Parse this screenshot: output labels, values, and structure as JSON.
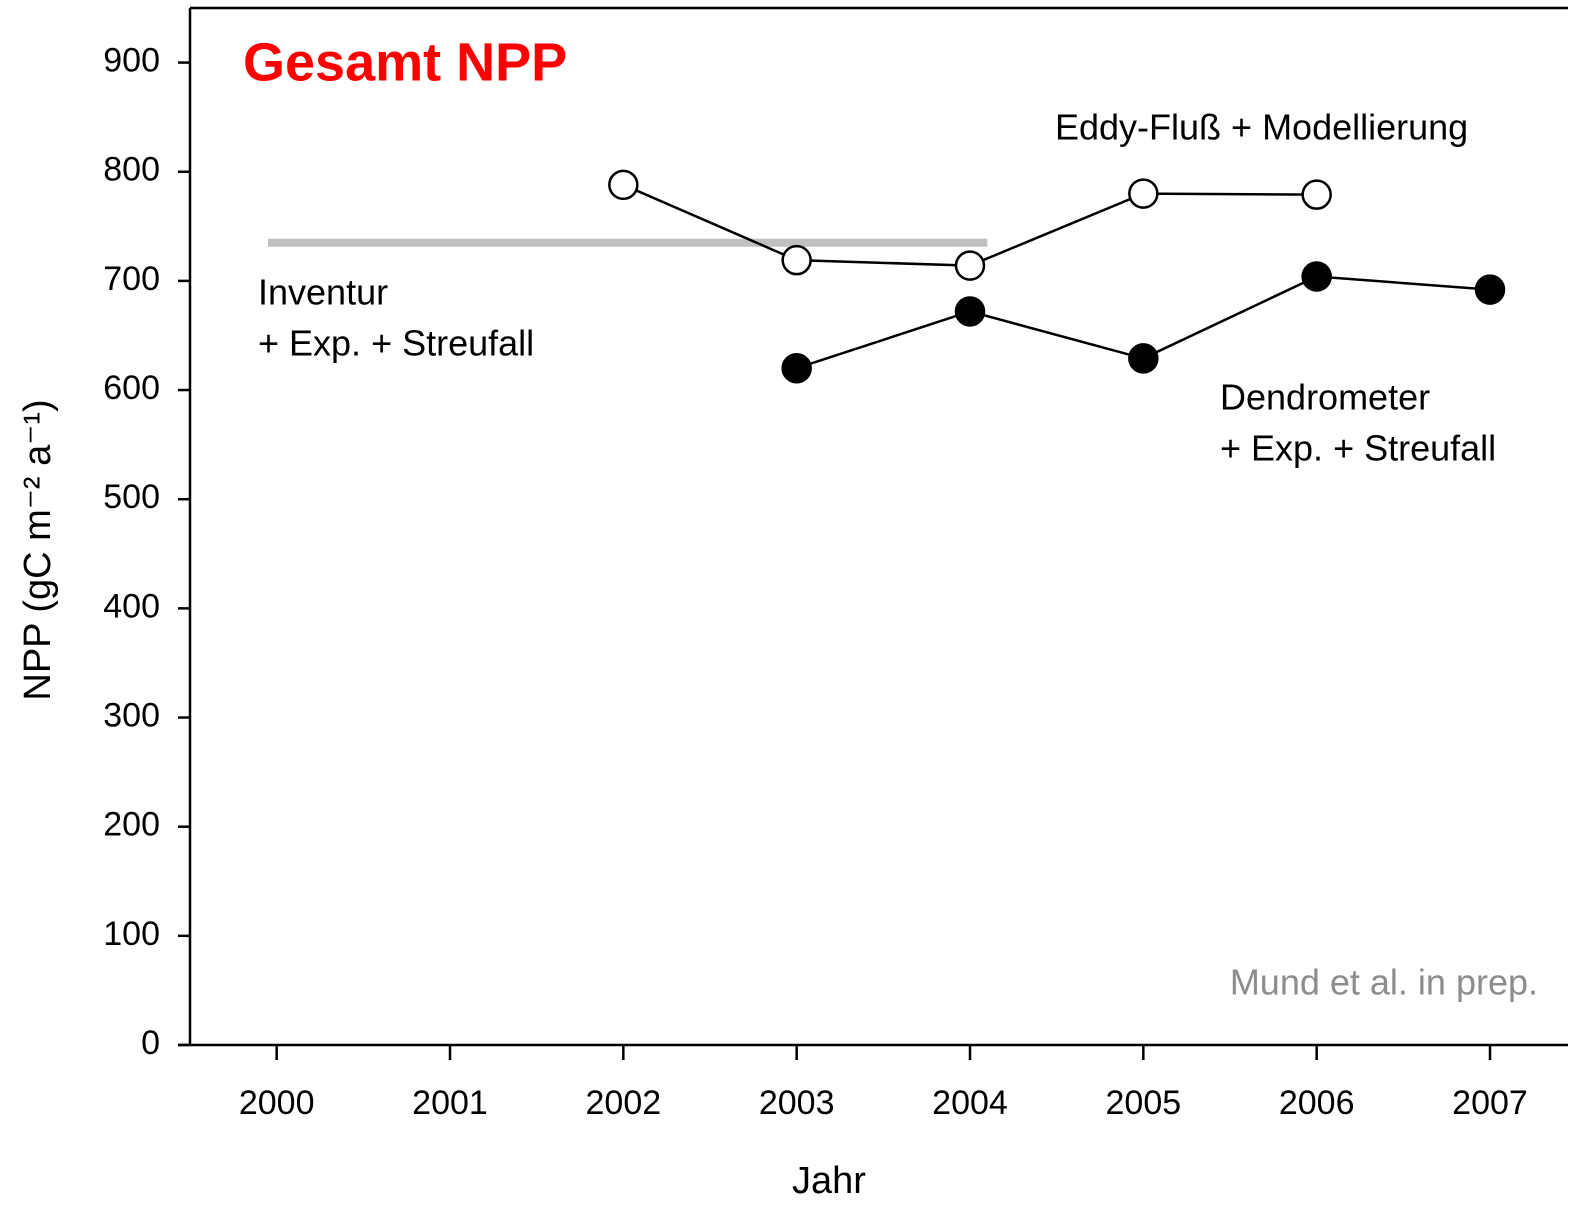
{
  "chart_data": {
    "type": "line",
    "title": "Gesamt NPP",
    "title_color": "#ff0000",
    "xlabel": "Jahr",
    "ylabel": "NPP (gC m⁻² a⁻¹)",
    "xlim": [
      1999.5,
      2007.45
    ],
    "ylim": [
      0,
      950
    ],
    "xticks": [
      2000,
      2001,
      2002,
      2003,
      2004,
      2005,
      2006,
      2007
    ],
    "yticks": [
      0,
      100,
      200,
      300,
      400,
      500,
      600,
      700,
      800,
      900
    ],
    "grid": false,
    "series": [
      {
        "name": [
          "Inventur",
          "+ Exp. + Streufall"
        ],
        "color": "#c0c0c0",
        "marker": "none",
        "x": [
          1999.95,
          2004.1
        ],
        "values": [
          735,
          735
        ]
      },
      {
        "name": [
          "Eddy-Fluß + Modellierung"
        ],
        "color": "#000000",
        "marker": "open",
        "x": [
          2002,
          2003,
          2004,
          2005,
          2006
        ],
        "values": [
          788,
          719,
          714,
          780,
          779
        ]
      },
      {
        "name": [
          "Dendrometer",
          "+ Exp. + Streufall"
        ],
        "color": "#000000",
        "marker": "filled",
        "x": [
          2003,
          2004,
          2005,
          2006,
          2007
        ],
        "values": [
          620,
          672,
          629,
          704,
          692
        ]
      }
    ],
    "annotations": [
      "Mund et al. in prep."
    ],
    "annotation_color": "#8c8c8c"
  }
}
